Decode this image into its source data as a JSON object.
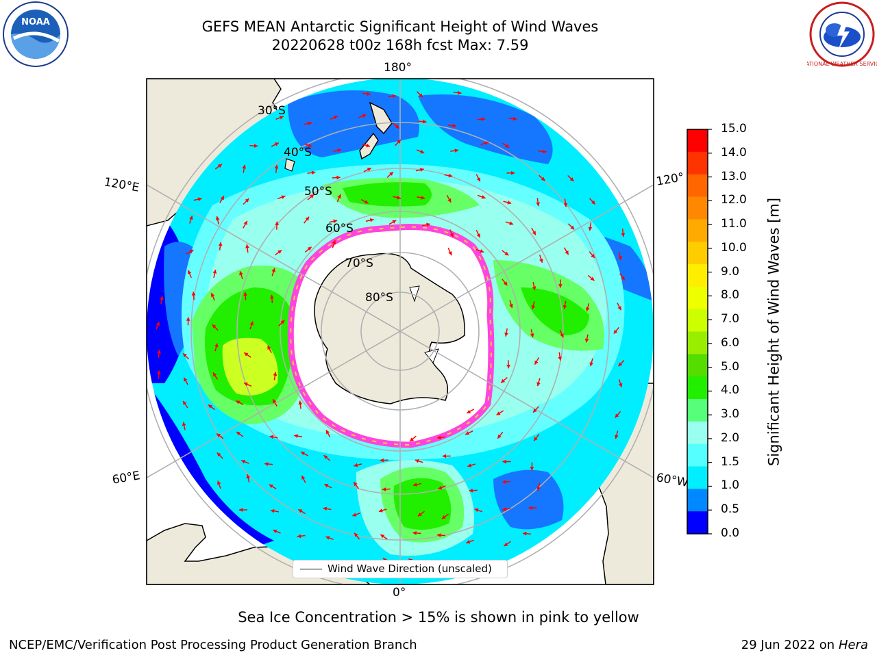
{
  "header": {
    "title_line1": "GEFS MEAN Antarctic Significant Height of Wind Waves",
    "title_line2": "20220628 t00z 168h fcst   Max: 7.59"
  },
  "logos": {
    "noaa_text": "NOAA",
    "nws_text": "NATIONAL WEATHER SERVICE"
  },
  "map": {
    "lon_labels": {
      "top": "180°",
      "bottom": "0°",
      "upper_left": "120°E",
      "upper_right": "120°",
      "lower_left": "60°E",
      "lower_right": "60°W"
    },
    "lat_labels": [
      "30°S",
      "40°S",
      "50°S",
      "60°S",
      "70°S",
      "80°S"
    ]
  },
  "colorbar": {
    "title": "Significant Height of Wind Waves [m]",
    "ticks": [
      "15.0",
      "14.0",
      "13.0",
      "12.0",
      "11.0",
      "10.0",
      "9.0",
      "8.0",
      "7.0",
      "6.0",
      "5.0",
      "4.0",
      "3.0",
      "2.0",
      "1.5",
      "1.0",
      "0.5",
      "0.0"
    ],
    "colors": [
      "#ff0000",
      "#ff3300",
      "#ff6600",
      "#ff8800",
      "#ffaa00",
      "#ffcc00",
      "#ffee00",
      "#eeff00",
      "#ccff00",
      "#99ee00",
      "#55dd00",
      "#22ee00",
      "#55ff77",
      "#99ffee",
      "#55ffff",
      "#00eeff",
      "#0088ff",
      "#0000ff"
    ]
  },
  "legend": {
    "label": "Wind Wave Direction (unscaled)"
  },
  "note": "Sea Ice Concentration > 15% is shown in pink to yellow",
  "footer": {
    "left": "NCEP/EMC/Verification Post Processing Product Generation Branch",
    "right_date": "29 Jun 2022 on",
    "right_host": "Hera"
  },
  "colors": {
    "land": "#eeeadb",
    "ocean_deep": "#0000ff",
    "ocean_blue": "#1577ff",
    "ocean_cyan": "#00eeff",
    "ocean_light": "#66ffff",
    "ocean_pale": "#99ffee",
    "wave_green_light": "#66ff66",
    "wave_green": "#22ee00",
    "wave_yellow_green": "#ccff22",
    "ice_pink": "#ff44dd",
    "ice_yellow": "#ffcc44",
    "arrow": "#ff0000",
    "grid": "#b0b0b0"
  }
}
